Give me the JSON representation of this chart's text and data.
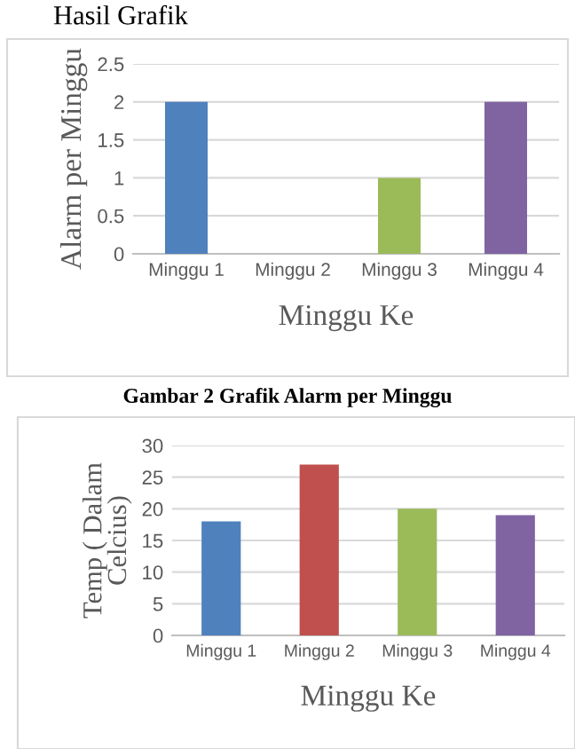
{
  "chart_data": [
    {
      "type": "bar",
      "title": "Hasil Grafik",
      "ylabel": "Alarm per Minggu",
      "xlabel": "Minggu Ke",
      "annotations": [
        "Gambar 2 Grafik Alarm per Minggu"
      ],
      "categories": [
        "Minggu 1",
        "Minggu 2",
        "Minggu 3",
        "Minggu 4"
      ],
      "values": [
        2,
        0,
        1,
        2
      ],
      "colors": [
        "#4f81bd",
        "#c0504d",
        "#9bbb59",
        "#8064a2"
      ],
      "ylim": [
        0,
        2.5
      ],
      "yticks": [
        0,
        0.5,
        1,
        1.5,
        2,
        2.5
      ],
      "grid": "y",
      "legend": false
    },
    {
      "type": "bar",
      "ylabel": "Temp ( Dalam\nCelcius)",
      "xlabel": "Minggu Ke",
      "categories": [
        "Minggu 1",
        "Minggu 2",
        "Minggu 3",
        "Minggu 4"
      ],
      "values": [
        18,
        27,
        20,
        19
      ],
      "colors": [
        "#4f81bd",
        "#c0504d",
        "#9bbb59",
        "#8064a2"
      ],
      "ylim": [
        0,
        30
      ],
      "yticks": [
        0,
        5,
        10,
        15,
        20,
        25,
        30
      ],
      "grid": "y",
      "legend": false
    }
  ]
}
